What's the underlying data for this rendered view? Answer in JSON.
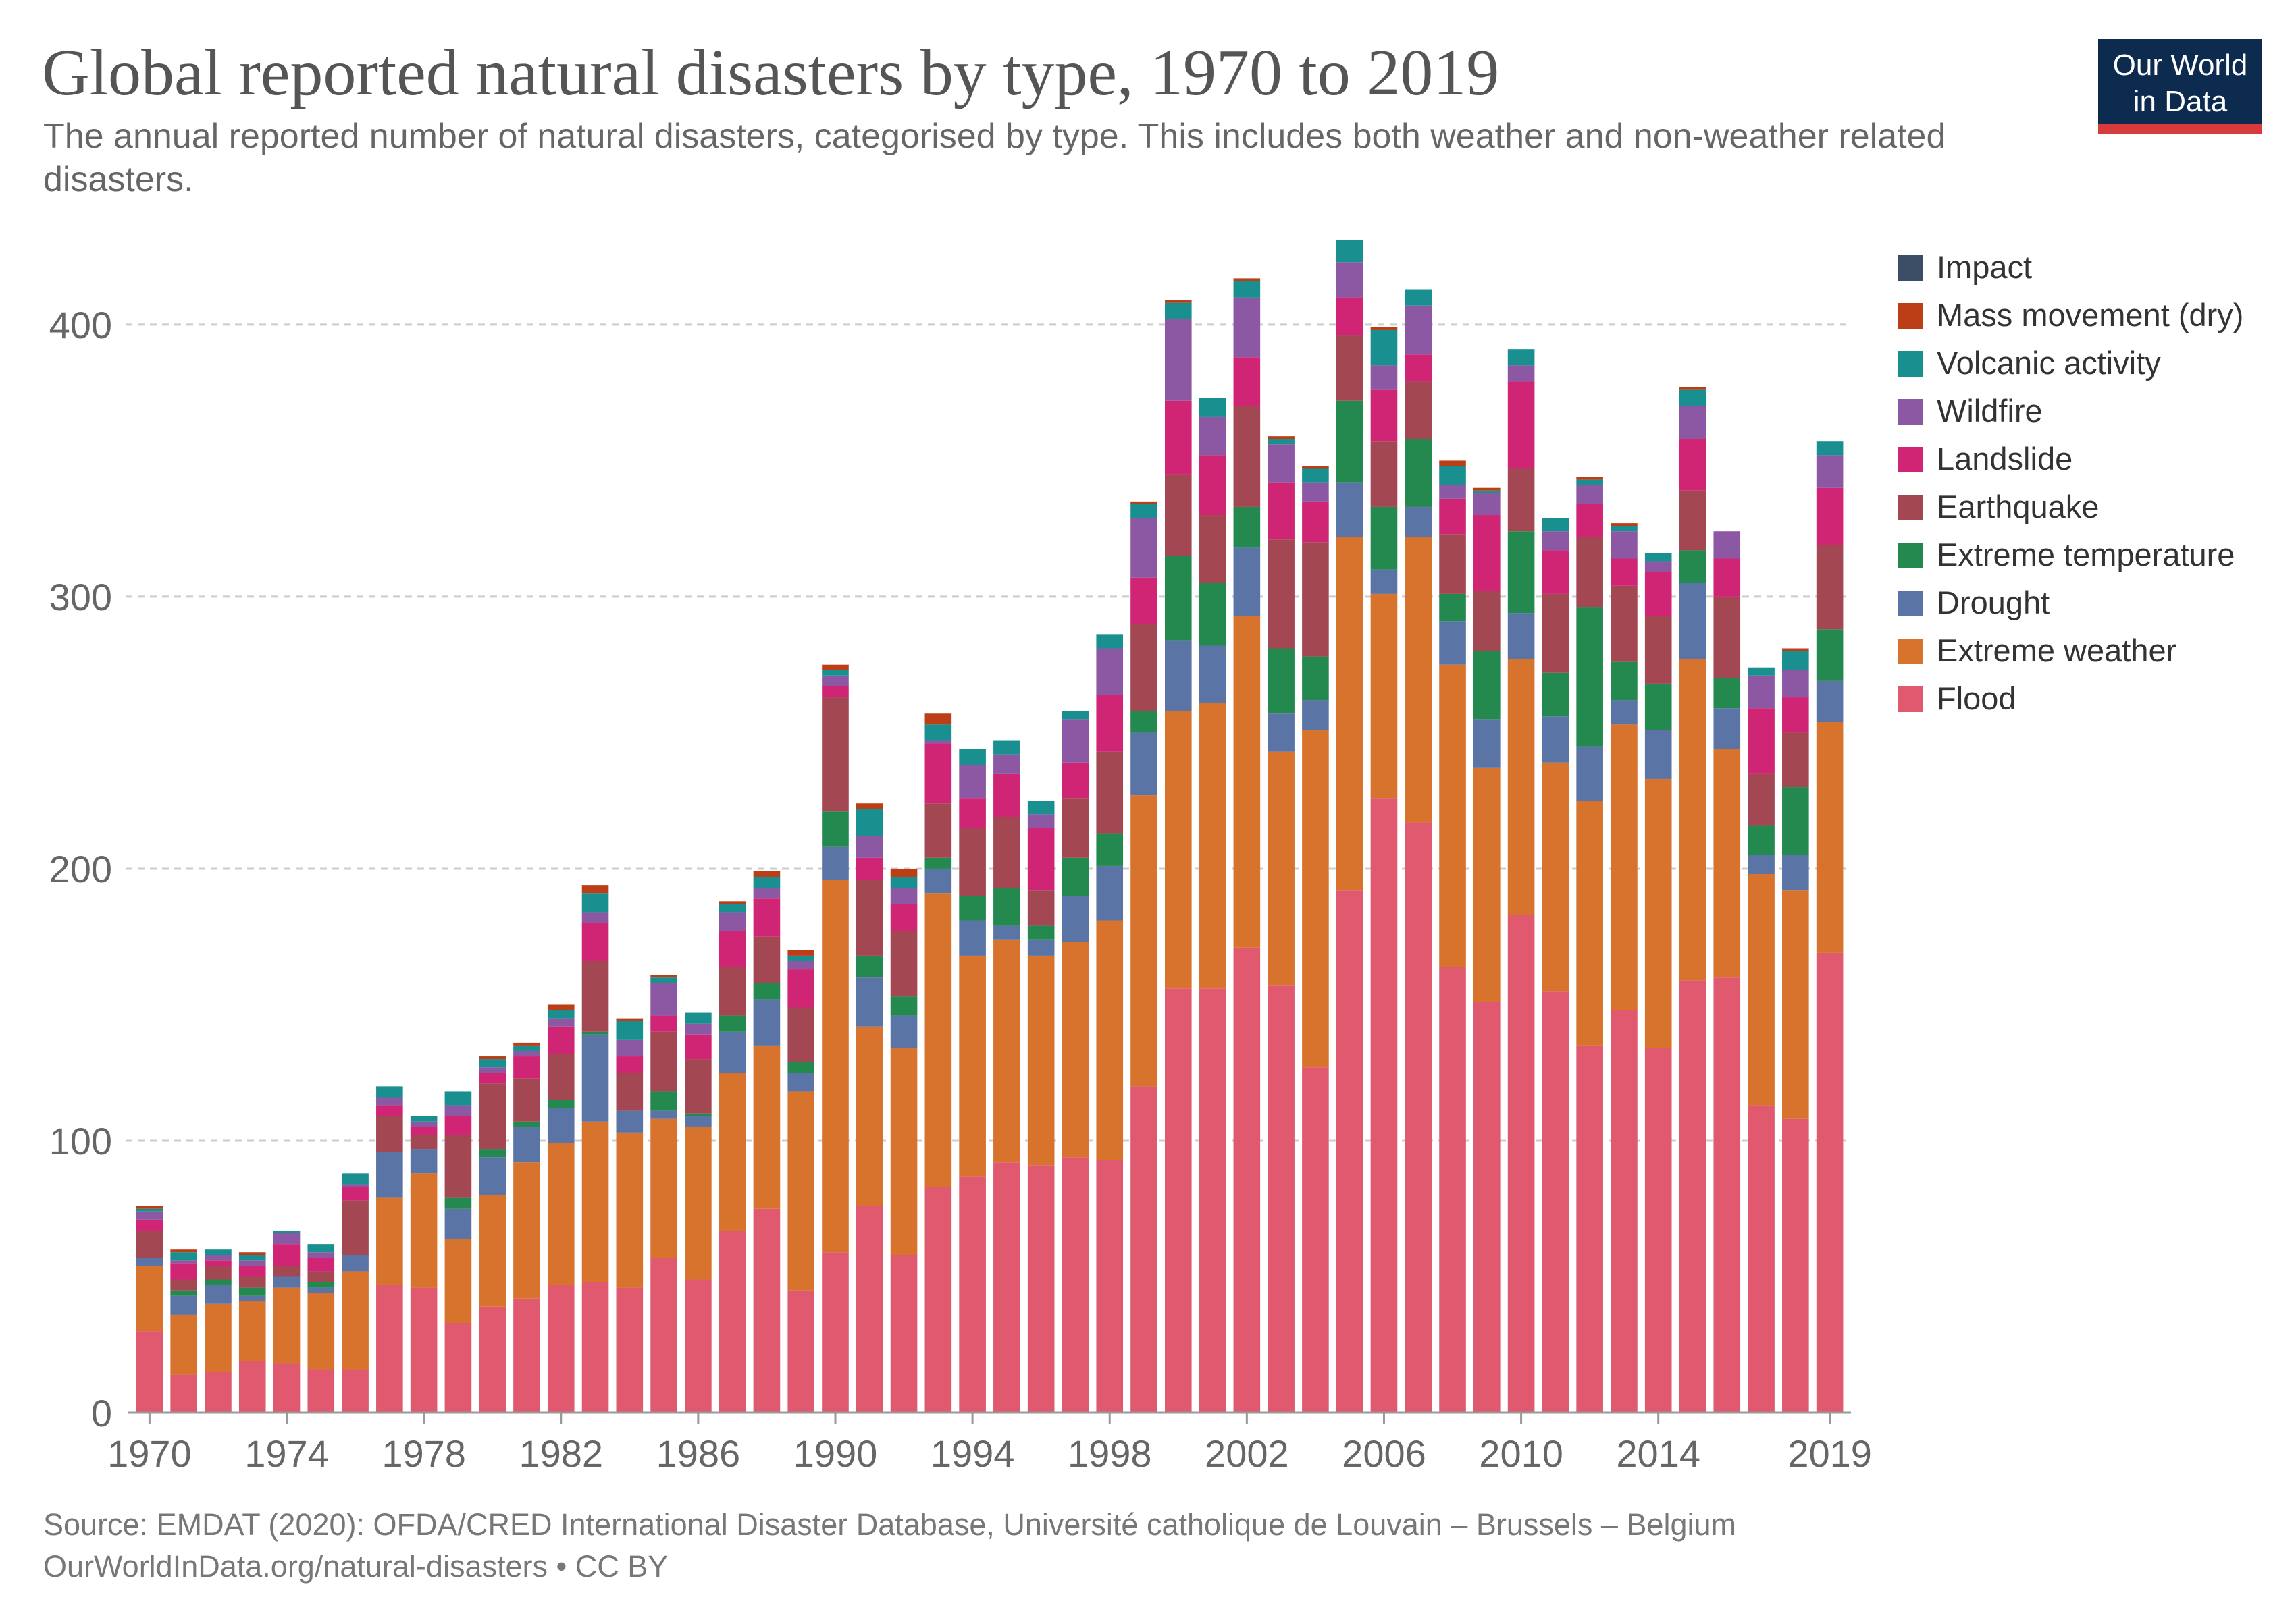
{
  "header": {
    "title": "Global reported natural disasters by type, 1970 to 2019",
    "subtitle": "The annual reported number of natural disasters, categorised by type. This includes both weather and non-weather related disasters.",
    "logo_line1": "Our World",
    "logo_line2": "in Data"
  },
  "footer": {
    "source": "Source: EMDAT (2020): OFDA/CRED International Disaster Database, Université catholique de Louvain – Brussels – Belgium",
    "url_license": "OurWorldInData.org/natural-disasters • CC BY"
  },
  "chart_data": {
    "type": "bar",
    "stacked": true,
    "title": "Global reported natural disasters by type, 1970 to 2019",
    "xlabel": "",
    "ylabel": "",
    "ylim": [
      0,
      430
    ],
    "yticks": [
      0,
      100,
      200,
      300,
      400
    ],
    "xticks": [
      1970,
      1974,
      1978,
      1982,
      1986,
      1990,
      1994,
      1998,
      2002,
      2006,
      2010,
      2014,
      2019
    ],
    "grid": "horizontal-dashed",
    "legend_position": "right",
    "categories": [
      1970,
      1971,
      1972,
      1973,
      1974,
      1975,
      1976,
      1977,
      1978,
      1979,
      1980,
      1981,
      1982,
      1983,
      1984,
      1985,
      1986,
      1987,
      1988,
      1989,
      1990,
      1991,
      1992,
      1993,
      1994,
      1995,
      1996,
      1997,
      1998,
      1999,
      2000,
      2001,
      2002,
      2003,
      2004,
      2005,
      2006,
      2007,
      2008,
      2009,
      2010,
      2011,
      2012,
      2013,
      2014,
      2015,
      2016,
      2017,
      2018,
      2019
    ],
    "series": [
      {
        "name": "Flood",
        "color": "#e0596f",
        "values": [
          30,
          14,
          15,
          19,
          18,
          16,
          16,
          47,
          46,
          33,
          39,
          42,
          47,
          48,
          46,
          57,
          49,
          67,
          75,
          45,
          59,
          76,
          58,
          83,
          87,
          92,
          91,
          94,
          93,
          120,
          156,
          156,
          171,
          157,
          127,
          192,
          226,
          217,
          164,
          151,
          183,
          155,
          135,
          148,
          134,
          159,
          160,
          113,
          108,
          169
        ]
      },
      {
        "name": "Extreme weather",
        "color": "#d7732c",
        "values": [
          24,
          22,
          25,
          22,
          28,
          28,
          36,
          32,
          42,
          31,
          41,
          50,
          52,
          59,
          57,
          51,
          56,
          58,
          60,
          73,
          137,
          66,
          76,
          108,
          81,
          82,
          77,
          79,
          88,
          107,
          102,
          105,
          122,
          86,
          124,
          130,
          75,
          105,
          111,
          86,
          94,
          84,
          90,
          105,
          99,
          118,
          84,
          85,
          84,
          85
        ]
      },
      {
        "name": "Drought",
        "color": "#5b74a6",
        "values": [
          3,
          7,
          7,
          2,
          4,
          2,
          6,
          17,
          9,
          11,
          14,
          13,
          13,
          32,
          8,
          3,
          4,
          15,
          17,
          7,
          12,
          18,
          12,
          9,
          13,
          5,
          6,
          17,
          20,
          23,
          26,
          21,
          25,
          14,
          11,
          20,
          9,
          11,
          16,
          18,
          17,
          17,
          20,
          9,
          18,
          28,
          15,
          7,
          13,
          15
        ]
      },
      {
        "name": "Extreme temperature",
        "color": "#24894f",
        "values": [
          0,
          2,
          2,
          3,
          0,
          2,
          0,
          0,
          0,
          4,
          3,
          2,
          3,
          1,
          0,
          7,
          1,
          6,
          6,
          4,
          13,
          8,
          7,
          4,
          9,
          14,
          5,
          14,
          12,
          8,
          31,
          23,
          15,
          24,
          16,
          30,
          23,
          25,
          10,
          25,
          30,
          16,
          51,
          14,
          17,
          12,
          11,
          11,
          25,
          19
        ]
      },
      {
        "name": "Earthquake",
        "color": "#a34752",
        "values": [
          10,
          4,
          5,
          4,
          4,
          4,
          20,
          13,
          5,
          23,
          24,
          16,
          17,
          26,
          14,
          22,
          20,
          18,
          17,
          20,
          42,
          28,
          24,
          20,
          25,
          26,
          13,
          22,
          30,
          32,
          30,
          25,
          37,
          40,
          42,
          24,
          24,
          21,
          22,
          22,
          23,
          29,
          26,
          28,
          25,
          22,
          30,
          19,
          20,
          31
        ]
      },
      {
        "name": "Landslide",
        "color": "#d02474",
        "values": [
          4,
          6,
          2,
          4,
          8,
          5,
          5,
          4,
          3,
          7,
          4,
          8,
          10,
          14,
          6,
          6,
          9,
          13,
          14,
          14,
          4,
          8,
          10,
          22,
          11,
          16,
          23,
          13,
          21,
          17,
          27,
          22,
          18,
          21,
          15,
          14,
          19,
          10,
          13,
          28,
          32,
          16,
          12,
          10,
          16,
          19,
          14,
          24,
          13,
          21
        ]
      },
      {
        "name": "Wildfire",
        "color": "#8d58a3",
        "values": [
          3,
          1,
          2,
          2,
          4,
          2,
          1,
          3,
          2,
          4,
          2,
          2,
          3,
          4,
          6,
          12,
          4,
          7,
          4,
          3,
          4,
          8,
          6,
          1,
          12,
          7,
          5,
          16,
          17,
          22,
          30,
          14,
          22,
          14,
          7,
          13,
          9,
          18,
          5,
          8,
          6,
          7,
          7,
          10,
          4,
          12,
          10,
          12,
          10,
          12
        ]
      },
      {
        "name": "Volcanic activity",
        "color": "#1a8f8f",
        "values": [
          1,
          3,
          2,
          2,
          1,
          3,
          4,
          4,
          2,
          5,
          3,
          2,
          3,
          7,
          7,
          2,
          4,
          3,
          4,
          2,
          2,
          10,
          4,
          6,
          6,
          5,
          5,
          3,
          5,
          5,
          6,
          7,
          6,
          2,
          5,
          8,
          13,
          6,
          7,
          1,
          6,
          5,
          2,
          2,
          3,
          6,
          0,
          3,
          7,
          5
        ]
      },
      {
        "name": "Mass movement (dry)",
        "color": "#bc3e16",
        "values": [
          1,
          1,
          0,
          1,
          0,
          0,
          0,
          0,
          0,
          0,
          1,
          1,
          2,
          3,
          1,
          1,
          0,
          1,
          2,
          2,
          2,
          2,
          3,
          4,
          0,
          0,
          0,
          0,
          0,
          1,
          1,
          0,
          1,
          1,
          1,
          0,
          1,
          0,
          2,
          1,
          0,
          0,
          1,
          1,
          0,
          1,
          0,
          0,
          1,
          0
        ]
      },
      {
        "name": "Impact",
        "color": "#3c4e66",
        "values": [
          0,
          0,
          0,
          0,
          0,
          0,
          0,
          0,
          0,
          0,
          0,
          0,
          0,
          0,
          0,
          0,
          0,
          0,
          0,
          0,
          0,
          0,
          0,
          0,
          0,
          0,
          0,
          0,
          0,
          0,
          0,
          0,
          0,
          0,
          0,
          0,
          0,
          0,
          0,
          0,
          0,
          0,
          0,
          0,
          0,
          0,
          0,
          0,
          0,
          0
        ]
      }
    ],
    "legend_order": [
      "Impact",
      "Mass movement (dry)",
      "Volcanic activity",
      "Wildfire",
      "Landslide",
      "Earthquake",
      "Extreme temperature",
      "Drought",
      "Extreme weather",
      "Flood"
    ]
  }
}
